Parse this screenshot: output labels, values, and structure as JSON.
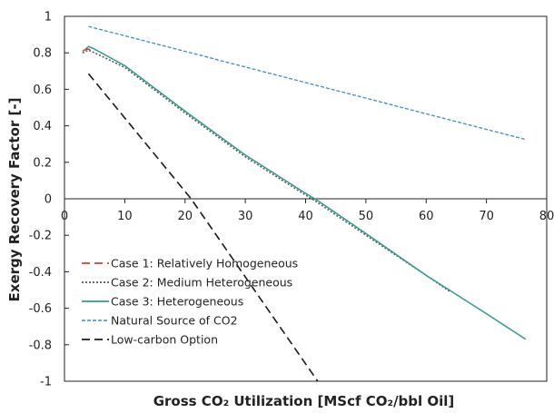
{
  "chart_data": {
    "type": "line",
    "title": "",
    "xlabel": "Gross CO₂ Utilization [MScf CO₂/bbl Oil]",
    "ylabel": "Exergy Recovery Factor [-]",
    "xlim": [
      0,
      80
    ],
    "ylim": [
      -1,
      1
    ],
    "xticks": [
      0,
      10,
      20,
      30,
      40,
      50,
      60,
      70,
      80
    ],
    "yticks": [
      1,
      0.8,
      0.6,
      0.4,
      0.2,
      0,
      -0.2,
      -0.4,
      -0.6,
      -0.8,
      -1
    ],
    "xtick_labels": [
      "0",
      "10",
      "20",
      "30",
      "40",
      "50",
      "60",
      "70",
      "80"
    ],
    "ytick_labels": [
      "1",
      "0.8",
      "0.6",
      "0.4",
      "0.2",
      "0",
      "-0.2",
      "-0.4",
      "-0.6",
      "-0.8",
      "-1"
    ],
    "grid": false,
    "legend_position": "lower-left",
    "series": [
      {
        "name": "Case 1: Relatively Homogeneous",
        "color": "#d0442c",
        "dash": "long-dash",
        "x": [
          3,
          3.3,
          3.6,
          4,
          5
        ],
        "y": [
          0.81,
          0.815,
          0.82,
          0.82,
          0.81
        ]
      },
      {
        "name": "Case 2: Medium Heterogeneous",
        "color": "#555555",
        "dash": "dotted",
        "x": [
          3,
          4,
          5,
          10,
          20,
          30,
          40,
          41.5,
          50,
          60,
          64
        ],
        "y": [
          0.8,
          0.815,
          0.8,
          0.72,
          0.47,
          0.23,
          0.02,
          -0.01,
          -0.2,
          -0.42,
          -0.51
        ]
      },
      {
        "name": "Case 3: Heterogeneous",
        "color": "#2e9c8e",
        "dash": "solid",
        "x": [
          3.5,
          4,
          5,
          10,
          20,
          30,
          40,
          42,
          50,
          60,
          70,
          76.5
        ],
        "y": [
          0.82,
          0.835,
          0.82,
          0.73,
          0.48,
          0.24,
          0.03,
          -0.01,
          -0.19,
          -0.42,
          -0.63,
          -0.77
        ]
      },
      {
        "name": "Natural Source of CO2",
        "color": "#3a8fc0",
        "dash": "short-dash",
        "x": [
          4,
          76.5
        ],
        "y": [
          0.945,
          0.325
        ]
      },
      {
        "name": "Low-carbon Option",
        "color": "#1a1a1a",
        "dash": "long-dash",
        "x": [
          4,
          21,
          42
        ],
        "y": [
          0.685,
          0,
          -1
        ]
      }
    ]
  }
}
